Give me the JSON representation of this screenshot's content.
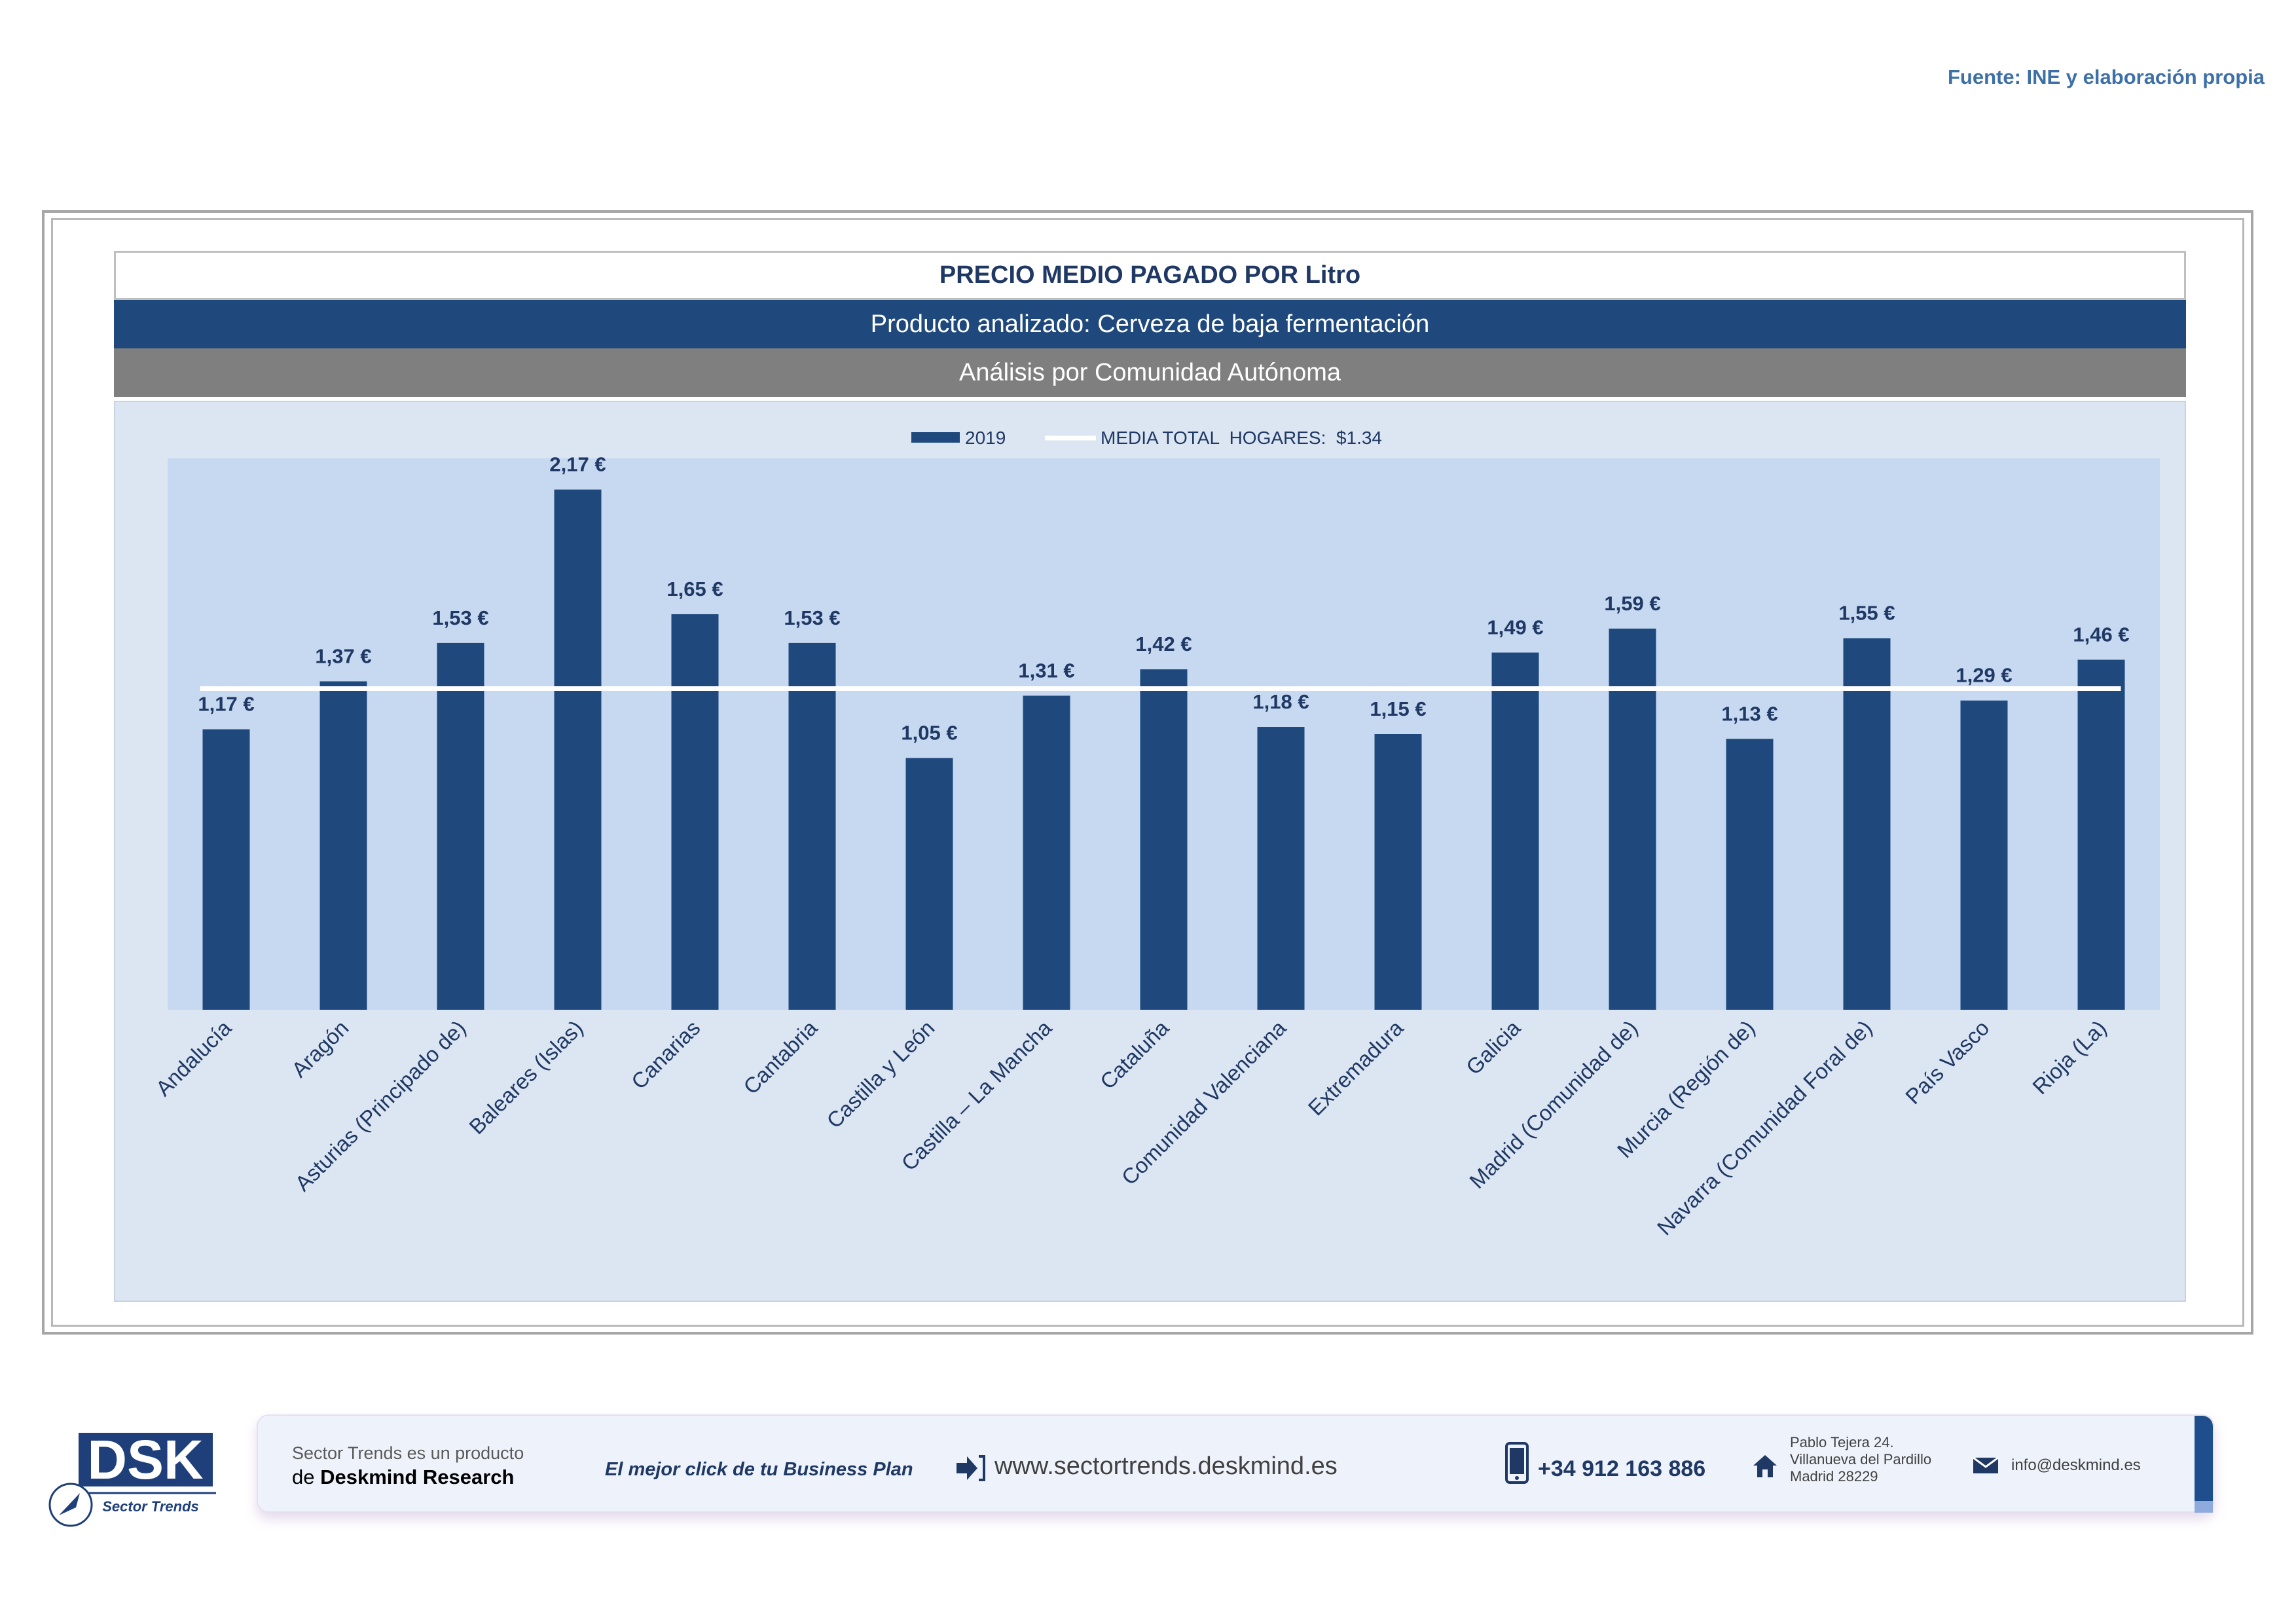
{
  "source_note": "Fuente: INE y elaboración propia",
  "header": {
    "title": "PRECIO MEDIO PAGADO POR Litro",
    "product": "Producto analizado: Cerveza de baja fermentación",
    "analysis": "Análisis por Comunidad Autónoma"
  },
  "colors": {
    "bar": "#1f497d",
    "mean_line": "#ffffff",
    "plot_bg": "#c6d9f1",
    "label": "#1f3864"
  },
  "chart_data": {
    "type": "bar",
    "title": "PRECIO MEDIO PAGADO POR Litro",
    "xlabel": "",
    "ylabel": "",
    "ylim": [
      0,
      2.3
    ],
    "grid": false,
    "legend_position": "top-center",
    "categories": [
      "Andalucía",
      "Aragón",
      "Asturias (Principado de)",
      "Baleares (Islas)",
      "Canarias",
      "Cantabria",
      "Castilla y León",
      "Castilla – La Mancha",
      "Cataluña",
      "Comunidad Valenciana",
      "Extremadura",
      "Galicia",
      "Madrid (Comunidad de)",
      "Murcia (Región de)",
      "Navarra (Comunidad Foral de)",
      "País Vasco",
      "Rioja (La)"
    ],
    "series": [
      {
        "name": "2019",
        "type": "bar",
        "values": [
          1.17,
          1.37,
          1.53,
          2.17,
          1.65,
          1.53,
          1.05,
          1.31,
          1.42,
          1.18,
          1.15,
          1.49,
          1.59,
          1.13,
          1.55,
          1.29,
          1.46
        ],
        "labels": [
          "1,17 €",
          "1,37 €",
          "1,53 €",
          "2,17 €",
          "1,65 €",
          "1,53 €",
          "1,05 €",
          "1,31 €",
          "1,42 €",
          "1,18 €",
          "1,15 €",
          "1,49 €",
          "1,59 €",
          "1,13 €",
          "1,55 €",
          "1,29 €",
          "1,46 €"
        ]
      },
      {
        "name": "MEDIA TOTAL  HOGARES:  $1.34",
        "type": "line",
        "value": 1.34
      }
    ]
  },
  "footer": {
    "logo_text": "DSK",
    "logo_subtitle": "Sector Trends",
    "product_line1": "Sector Trends es un producto",
    "product_line2_prefix": "de ",
    "product_line2_brand": "Deskmind Research",
    "slogan": "El mejor click de tu Business Plan",
    "website": "www.sectortrends.deskmind.es",
    "phone": "+34 912 163 886",
    "address_line1": "Pablo Tejera 24.",
    "address_line2": "Villanueva del Pardillo",
    "address_line3": "Madrid 28229",
    "email": "info@deskmind.es"
  }
}
